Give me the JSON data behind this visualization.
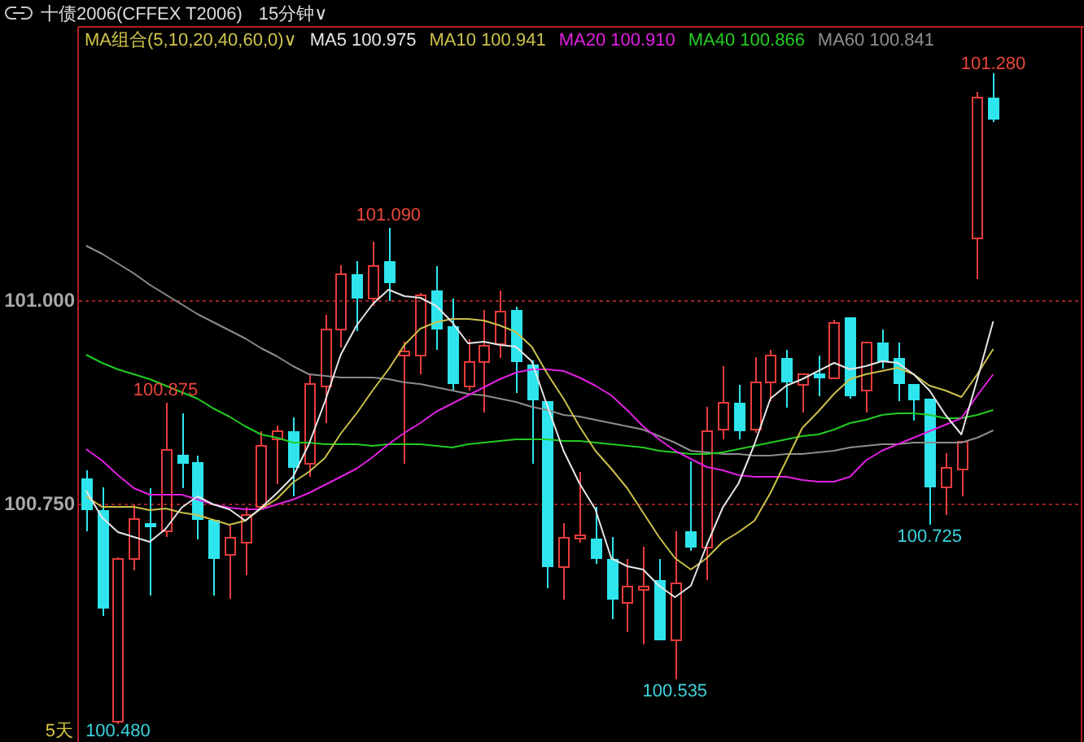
{
  "chart_data": {
    "type": "candlestick",
    "title": "十债2006(CFFEX T2006)",
    "subtitle": "15分钟∨",
    "legend_title": "MA组合(5,10,20,40,60,0)∨",
    "legend": "top left",
    "grid": "y",
    "categories": [
      null,
      null,
      null,
      null,
      null,
      null,
      null,
      null,
      null,
      null,
      null,
      null,
      null,
      null,
      null,
      null,
      null,
      null,
      null,
      null,
      null,
      null,
      null,
      null,
      null,
      null,
      null,
      null,
      null,
      null,
      null,
      null,
      null,
      null,
      null,
      null,
      null,
      null,
      null,
      null,
      null,
      null,
      null,
      null,
      null,
      null,
      null,
      null,
      null,
      null,
      null,
      null,
      null,
      null,
      null,
      null,
      null,
      null,
      null,
      null,
      null,
      null,
      null
    ],
    "ohlc": [
      [
        100.782,
        100.792,
        100.717,
        100.743
      ],
      [
        100.743,
        100.771,
        100.613,
        100.622
      ],
      [
        100.483,
        100.685,
        100.48,
        100.683
      ],
      [
        100.683,
        100.75,
        100.669,
        100.732
      ],
      [
        100.727,
        100.77,
        100.638,
        100.722
      ],
      [
        100.717,
        100.875,
        100.71,
        100.817
      ],
      [
        100.811,
        100.862,
        100.77,
        100.8
      ],
      [
        100.802,
        100.81,
        100.707,
        100.731
      ],
      [
        100.731,
        100.731,
        100.638,
        100.683
      ],
      [
        100.688,
        100.724,
        100.634,
        100.709
      ],
      [
        100.703,
        100.747,
        100.663,
        100.737
      ],
      [
        100.747,
        100.84,
        100.745,
        100.822
      ],
      [
        100.83,
        100.847,
        100.775,
        100.84
      ],
      [
        100.84,
        100.857,
        100.76,
        100.795
      ],
      [
        100.8,
        100.91,
        100.784,
        100.898
      ],
      [
        100.895,
        100.983,
        100.85,
        100.965
      ],
      [
        100.965,
        101.044,
        100.943,
        101.033
      ],
      [
        101.033,
        101.049,
        100.963,
        101.003
      ],
      [
        101.003,
        101.073,
        100.994,
        101.043
      ],
      [
        101.049,
        101.09,
        101,
        101.022
      ],
      [
        100.933,
        100.95,
        100.8,
        100.938
      ],
      [
        100.933,
        101.01,
        100.91,
        101.007
      ],
      [
        101.013,
        101.043,
        100.94,
        100.965
      ],
      [
        100.969,
        101.003,
        100.89,
        100.898
      ],
      [
        100.895,
        100.953,
        100.89,
        100.925
      ],
      [
        100.925,
        100.989,
        100.863,
        100.945
      ],
      [
        100.947,
        101.013,
        100.93,
        100.987
      ],
      [
        100.989,
        100.993,
        100.887,
        100.925
      ],
      [
        100.922,
        100.927,
        100.8,
        100.878
      ],
      [
        100.877,
        100.877,
        100.647,
        100.673
      ],
      [
        100.673,
        100.727,
        100.633,
        100.709
      ],
      [
        100.708,
        100.79,
        100.703,
        100.712
      ],
      [
        100.708,
        100.747,
        100.677,
        100.683
      ],
      [
        100.683,
        100.71,
        100.609,
        100.633
      ],
      [
        100.629,
        100.683,
        100.593,
        100.649
      ],
      [
        100.645,
        100.698,
        100.578,
        100.649
      ],
      [
        100.657,
        100.683,
        100.583,
        100.583
      ],
      [
        100.583,
        100.717,
        100.535,
        100.653
      ],
      [
        100.717,
        100.803,
        100.693,
        100.697
      ],
      [
        100.697,
        100.87,
        100.657,
        100.84
      ],
      [
        100.842,
        100.92,
        100.83,
        100.875
      ],
      [
        100.875,
        100.897,
        100.83,
        100.84
      ],
      [
        100.842,
        100.931,
        100.838,
        100.9
      ],
      [
        100.9,
        100.94,
        100.877,
        100.933
      ],
      [
        100.93,
        100.94,
        100.869,
        100.9
      ],
      [
        100.897,
        100.91,
        100.863,
        100.91
      ],
      [
        100.911,
        100.933,
        100.883,
        100.905
      ],
      [
        100.905,
        100.977,
        100.905,
        100.973
      ],
      [
        100.98,
        100.98,
        100.88,
        100.883
      ],
      [
        100.89,
        100.949,
        100.863,
        100.949
      ],
      [
        100.949,
        100.965,
        100.917,
        100.925
      ],
      [
        100.93,
        100.949,
        100.877,
        100.898
      ],
      [
        100.898,
        100.898,
        100.853,
        100.878
      ],
      [
        100.88,
        100.88,
        100.725,
        100.771
      ],
      [
        100.771,
        100.813,
        100.737,
        100.795
      ],
      [
        100.793,
        100.827,
        100.76,
        100.827
      ],
      [
        101.077,
        101.257,
        101.027,
        101.25
      ],
      [
        101.25,
        101.28,
        101.22,
        101.223
      ],
      null,
      null,
      null,
      null,
      null
    ],
    "colors": [
      "#2ee5ee",
      "#2ee5ee",
      "#e83c3c",
      "#e83c3c",
      "#2ee5ee",
      "#e83c3c",
      "#2ee5ee",
      "#2ee5ee",
      "#2ee5ee",
      "#e83c3c",
      "#e83c3c",
      "#e83c3c",
      "#e83c3c",
      "#2ee5ee",
      "#e83c3c",
      "#e83c3c",
      "#e83c3c",
      "#2ee5ee",
      "#e83c3c",
      "#2ee5ee",
      "#e83c3c",
      "#e83c3c",
      "#2ee5ee",
      "#2ee5ee",
      "#e83c3c",
      "#e83c3c",
      "#e83c3c",
      "#2ee5ee",
      "#2ee5ee",
      "#2ee5ee",
      "#e83c3c",
      "#e83c3c",
      "#2ee5ee",
      "#2ee5ee",
      "#e83c3c",
      "#e83c3c",
      "#2ee5ee",
      "#e83c3c",
      "#2ee5ee",
      "#e83c3c",
      "#e83c3c",
      "#2ee5ee",
      "#e83c3c",
      "#e83c3c",
      "#2ee5ee",
      "#e83c3c",
      "#2ee5ee",
      "#e83c3c",
      "#2ee5ee",
      "#e83c3c",
      "#2ee5ee",
      "#2ee5ee",
      "#2ee5ee",
      "#2ee5ee",
      "#e83c3c",
      "#e83c3c",
      "#e83c3c",
      "#2ee5ee",
      null,
      null,
      null,
      null,
      null
    ],
    "series": [
      {
        "name": "MA5 100.975",
        "type": "line",
        "color": "#e6e6e6",
        "values": [
          100.767,
          100.734,
          100.716,
          100.71,
          100.704,
          100.72,
          100.746,
          100.76,
          100.75,
          100.744,
          100.73,
          100.746,
          100.764,
          100.784,
          100.824,
          100.876,
          100.934,
          100.97,
          100.996,
          101.014,
          101.006,
          101.004,
          100.994,
          100.974,
          100.948,
          100.95,
          100.946,
          100.944,
          100.926,
          100.87,
          100.816,
          100.776,
          100.744,
          100.684,
          100.674,
          100.67,
          100.65,
          100.636,
          100.65,
          100.7,
          100.746,
          100.776,
          100.824,
          100.88,
          100.896,
          100.904,
          100.914,
          100.924,
          100.916,
          100.92,
          100.926,
          100.924,
          100.91,
          100.89,
          100.86,
          100.836,
          100.904,
          100.975,
          null,
          null,
          null,
          null,
          null
        ]
      },
      {
        "name": "MA10 100.941",
        "type": "line",
        "color": "#cbc14a",
        "values": [
          100.76,
          100.747,
          100.747,
          100.747,
          100.743,
          100.745,
          100.74,
          100.737,
          100.731,
          100.725,
          100.73,
          100.745,
          100.757,
          100.777,
          100.79,
          100.807,
          100.837,
          100.862,
          100.89,
          100.916,
          100.946,
          100.966,
          100.974,
          100.978,
          100.978,
          100.976,
          100.97,
          100.962,
          100.944,
          100.91,
          100.88,
          100.846,
          100.816,
          100.794,
          100.77,
          100.74,
          100.71,
          100.684,
          100.67,
          100.684,
          100.704,
          100.716,
          100.73,
          100.764,
          100.804,
          100.844,
          100.864,
          100.886,
          100.904,
          100.91,
          100.914,
          100.918,
          100.91,
          100.896,
          100.89,
          100.882,
          100.91,
          100.941,
          null,
          null,
          null,
          null,
          null
        ]
      },
      {
        "name": "MA20 100.910",
        "type": "line",
        "color": "#e020e0",
        "values": [
          100.818,
          100.804,
          100.786,
          100.77,
          100.762,
          100.762,
          100.762,
          100.756,
          100.75,
          100.746,
          100.744,
          100.744,
          100.75,
          100.756,
          100.764,
          100.774,
          100.784,
          100.794,
          100.808,
          100.824,
          100.838,
          100.85,
          100.864,
          100.874,
          100.884,
          100.894,
          100.904,
          100.912,
          100.916,
          100.916,
          100.914,
          100.906,
          100.896,
          100.884,
          100.866,
          100.846,
          100.83,
          100.816,
          100.806,
          100.796,
          100.792,
          100.786,
          100.784,
          100.784,
          100.784,
          100.78,
          100.778,
          100.778,
          100.784,
          100.804,
          100.816,
          100.824,
          100.832,
          100.84,
          100.848,
          100.856,
          100.884,
          100.91,
          null,
          null,
          null,
          null,
          null
        ]
      },
      {
        "name": "MA40 100.866",
        "type": "line",
        "color": "#22cc22",
        "values": [
          100.934,
          100.924,
          100.916,
          100.91,
          100.904,
          100.896,
          100.888,
          100.88,
          100.868,
          100.858,
          100.846,
          100.836,
          100.832,
          100.826,
          100.826,
          100.824,
          100.824,
          100.824,
          100.822,
          100.824,
          100.824,
          100.824,
          100.822,
          100.82,
          100.824,
          100.826,
          100.828,
          100.83,
          100.83,
          100.83,
          100.828,
          100.828,
          100.826,
          100.824,
          100.822,
          100.82,
          100.816,
          100.814,
          100.812,
          100.812,
          100.814,
          100.818,
          100.822,
          100.826,
          100.83,
          100.834,
          100.836,
          100.842,
          100.85,
          100.854,
          100.86,
          100.862,
          100.862,
          100.86,
          100.856,
          100.856,
          100.86,
          100.866,
          null,
          null,
          null,
          null,
          null
        ]
      },
      {
        "name": "MA60 100.841",
        "type": "line",
        "color": "#8c8c8c",
        "values": [
          101.068,
          101.058,
          101.046,
          101.034,
          101.02,
          101.008,
          100.996,
          100.984,
          100.974,
          100.964,
          100.954,
          100.942,
          100.932,
          100.92,
          100.91,
          100.908,
          100.906,
          100.906,
          100.906,
          100.904,
          100.9,
          100.898,
          100.894,
          100.89,
          100.886,
          100.884,
          100.88,
          100.876,
          100.87,
          100.866,
          100.86,
          100.858,
          100.854,
          100.85,
          100.846,
          100.842,
          100.834,
          100.826,
          100.816,
          100.814,
          100.812,
          100.812,
          100.81,
          100.81,
          100.812,
          100.812,
          100.814,
          100.816,
          100.82,
          100.822,
          100.824,
          100.824,
          100.826,
          100.826,
          100.826,
          100.826,
          100.832,
          100.841,
          null,
          null,
          null,
          null,
          null
        ]
      }
    ],
    "ylim": [
      100.458,
      101.336
    ],
    "yticks": [
      {
        "value": 100.75,
        "label": "100.750"
      },
      {
        "value": 101,
        "label": "101.000"
      }
    ],
    "annotations": [
      {
        "text": "101.090",
        "y": 101.09
      },
      {
        "text": "100.875",
        "y": 100.875
      },
      {
        "text": "101.280",
        "y": 101.28
      },
      {
        "text": "100.480",
        "y": 100.48
      },
      {
        "text": "100.535",
        "y": 100.535
      },
      {
        "text": "100.725",
        "y": 100.725
      },
      "5天"
    ]
  }
}
